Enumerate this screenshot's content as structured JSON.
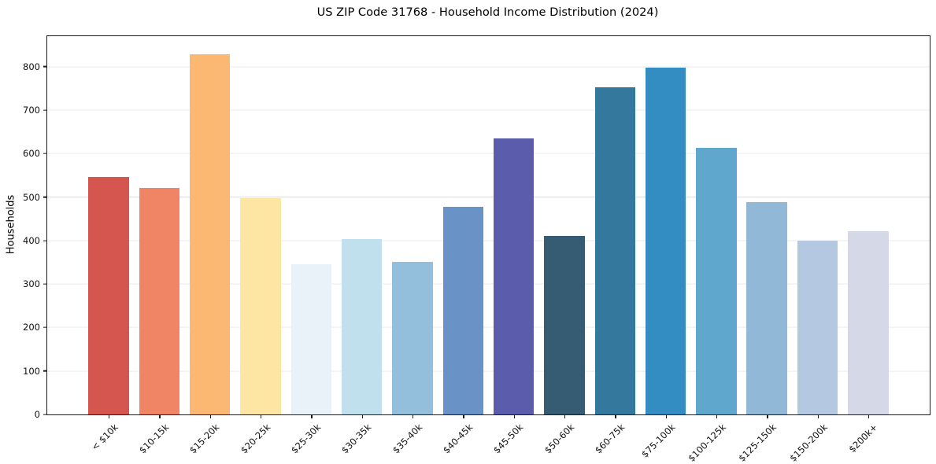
{
  "chart_data": {
    "type": "bar",
    "title": "US ZIP Code 31768 - Household Income Distribution (2024)",
    "xlabel": "",
    "ylabel": "Households",
    "categories": [
      "< $10k",
      "$10-15k",
      "$15-20k",
      "$20-25k",
      "$25-30k",
      "$30-35k",
      "$35-40k",
      "$40-45k",
      "$45-50k",
      "$50-60k",
      "$60-75k",
      "$75-100k",
      "$100-125k",
      "$125-150k",
      "$150-200k",
      "$200k+"
    ],
    "values": [
      546,
      521,
      829,
      497,
      346,
      404,
      351,
      477,
      634,
      411,
      752,
      798,
      614,
      489,
      400,
      422
    ],
    "bar_colors": [
      "#d4564f",
      "#f08565",
      "#fab873",
      "#fde5a4",
      "#e9f2f9",
      "#c0e0ed",
      "#93bfdd",
      "#6992c6",
      "#5b5cab",
      "#365c73",
      "#34789d",
      "#338cc2",
      "#5fa7cc",
      "#92b8d8",
      "#b5c8e2",
      "#d5d8e7"
    ],
    "yticks": [
      0,
      100,
      200,
      300,
      400,
      500,
      600,
      700,
      800
    ],
    "ylim": [
      0,
      870
    ],
    "x_tick_rotation": 45,
    "grid": "horizontal",
    "legend": "none",
    "colors": {
      "background": "#ffffff",
      "spine": "#1a1a1a",
      "gridline": "#ebebeb",
      "text": "#000000"
    }
  }
}
